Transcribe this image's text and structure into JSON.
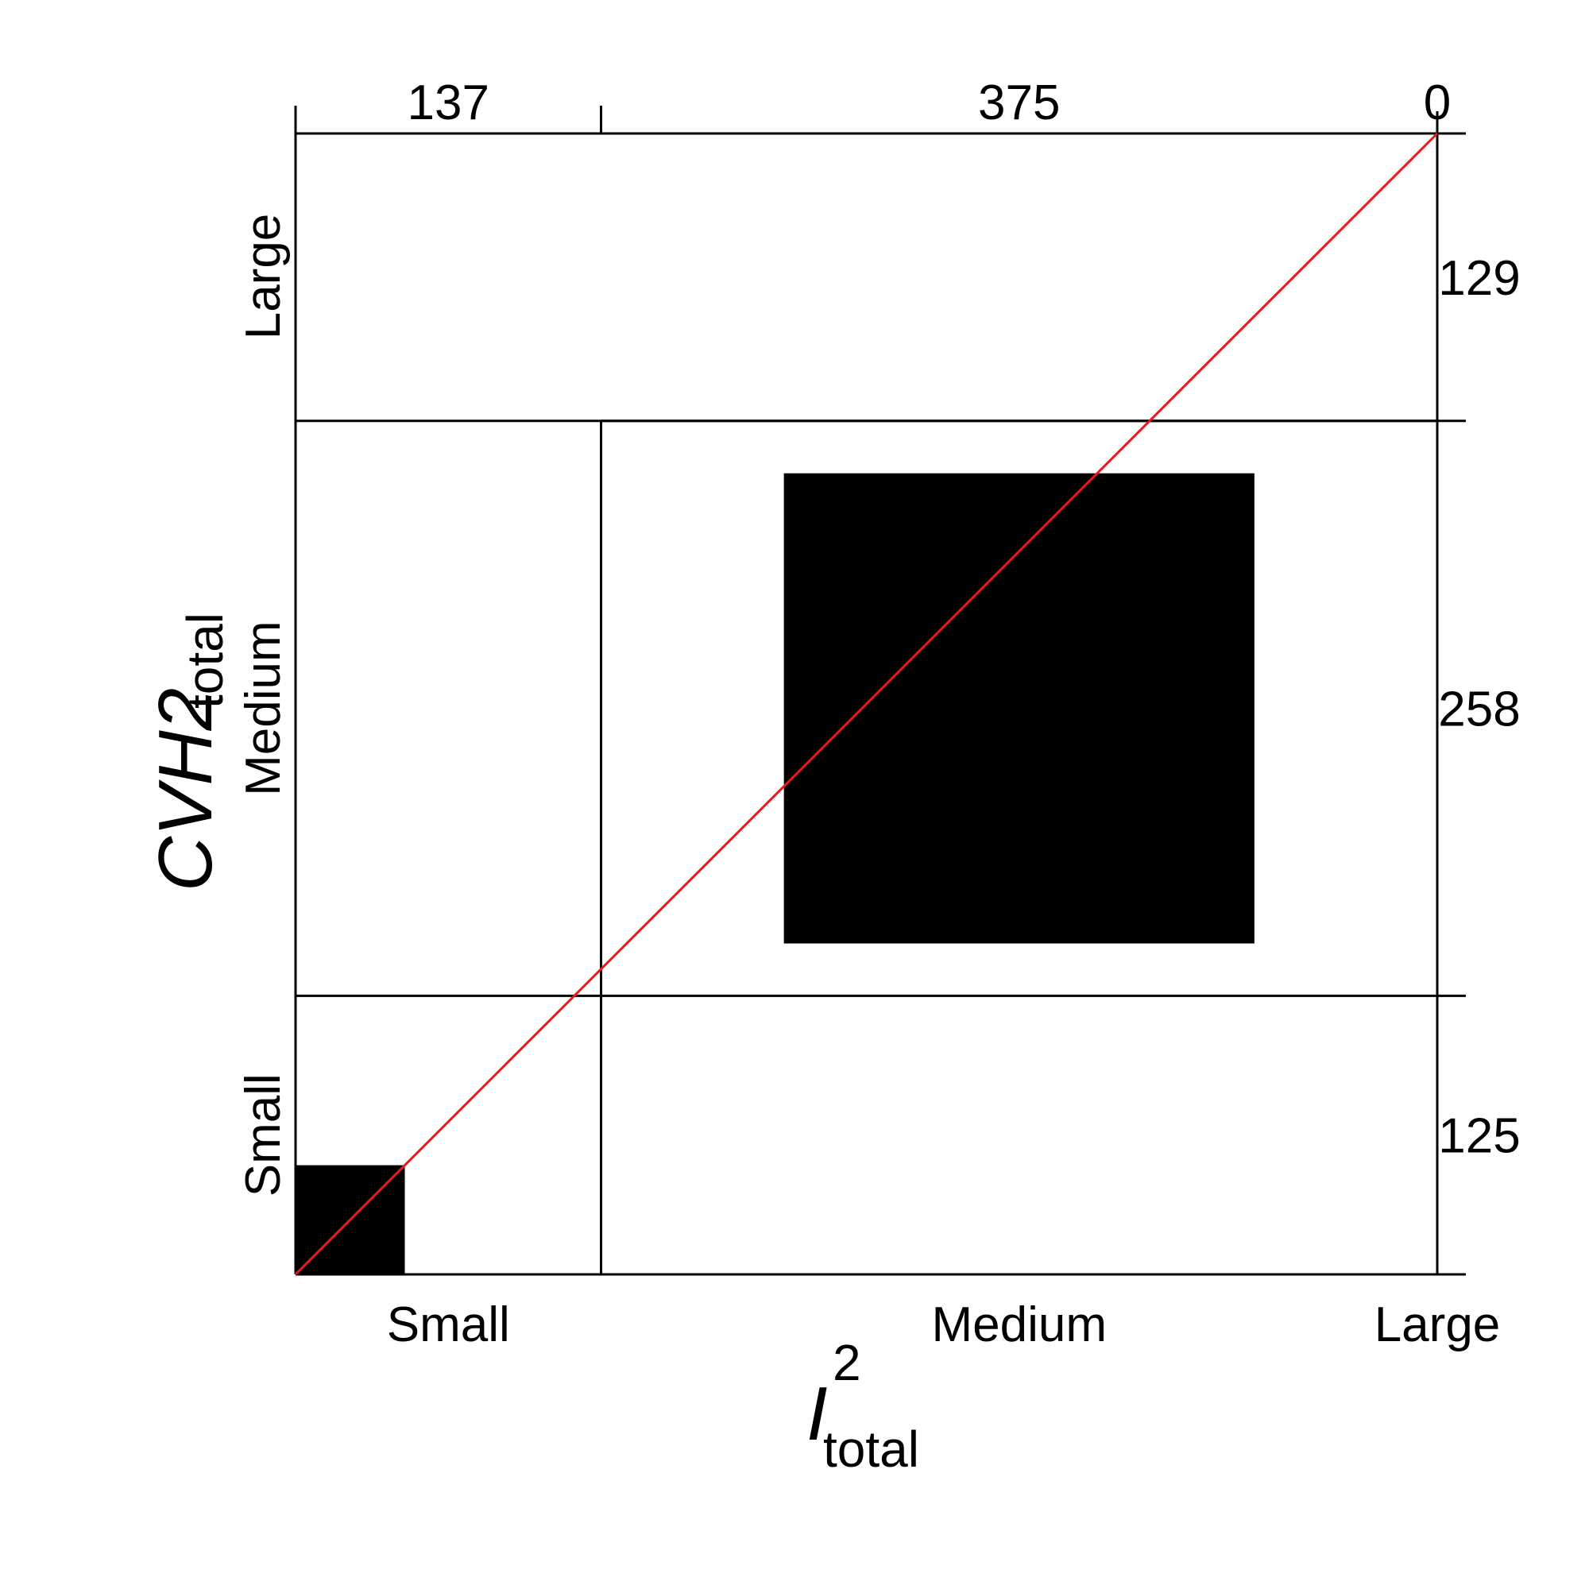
{
  "chart_data": {
    "type": "table",
    "kind": "agreement-chart",
    "x_axis": {
      "label_main": "I",
      "label_sup": "2",
      "label_sub": "total",
      "categories": [
        "Small",
        "Medium",
        "Large"
      ],
      "marginal_counts": [
        "137",
        "375",
        "0"
      ],
      "marginal_values": [
        137,
        375,
        0
      ]
    },
    "y_axis": {
      "label_main": "CVH2",
      "label_sub": "total",
      "categories": [
        "Small",
        "Medium",
        "Large"
      ],
      "marginal_counts": [
        "125",
        "258",
        "129"
      ],
      "marginal_values": [
        125,
        258,
        129
      ]
    },
    "agreement": [
      {
        "category": "Small",
        "count": 49
      },
      {
        "category": "Medium",
        "count": 211
      },
      {
        "category": "Large",
        "count": 0
      }
    ],
    "diagonal_color": "#e41a1c",
    "cell_fill": "#000000"
  }
}
